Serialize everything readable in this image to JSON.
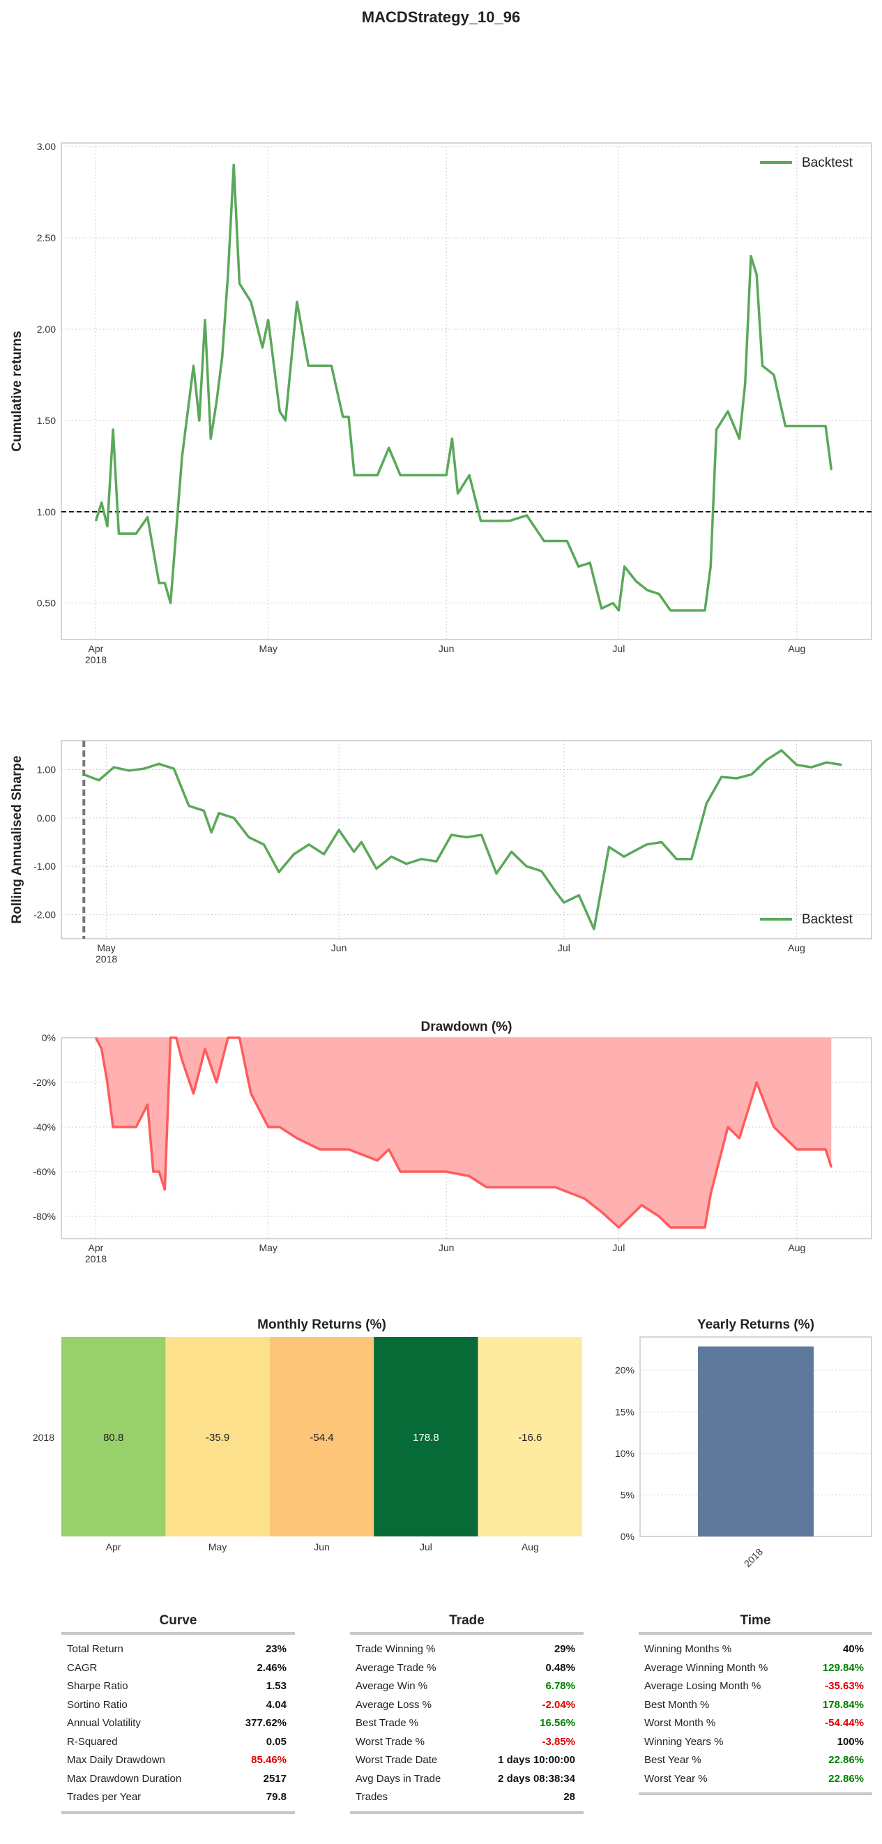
{
  "title": "MACDStrategy_10_96",
  "colors": {
    "series": "#5aa85a",
    "drawdown_line": "#ff5c5c",
    "drawdown_fill": "#ffb0b0",
    "yearly_bar": "#5e799c",
    "grid": "#cccccc"
  },
  "chart_data": [
    {
      "id": "cumulative",
      "type": "line",
      "title": "",
      "xlabel": "",
      "ylabel": "Cumulative returns",
      "x_ticks": [
        "Apr\n2018",
        "May",
        "Jun",
        "Jul",
        "Aug"
      ],
      "x_tick_dates": [
        "2018-04-01",
        "2018-05-01",
        "2018-06-01",
        "2018-07-01",
        "2018-08-01"
      ],
      "xlim": [
        "2018-03-26",
        "2018-08-14"
      ],
      "y_ticks": [
        "0.50",
        "1.00",
        "1.50",
        "2.00",
        "2.50",
        "3.00"
      ],
      "ylim": [
        0.3,
        3.02
      ],
      "reference_line": 1.0,
      "legend": "top-right",
      "grid": true,
      "series": [
        {
          "name": "Backtest",
          "x": [
            "2018-04-01",
            "2018-04-02",
            "2018-04-03",
            "2018-04-04",
            "2018-04-05",
            "2018-04-06",
            "2018-04-08",
            "2018-04-10",
            "2018-04-12",
            "2018-04-13",
            "2018-04-14",
            "2018-04-16",
            "2018-04-18",
            "2018-04-19",
            "2018-04-20",
            "2018-04-21",
            "2018-04-22",
            "2018-04-23",
            "2018-04-24",
            "2018-04-25",
            "2018-04-26",
            "2018-04-28",
            "2018-04-30",
            "2018-05-01",
            "2018-05-03",
            "2018-05-04",
            "2018-05-06",
            "2018-05-08",
            "2018-05-10",
            "2018-05-12",
            "2018-05-14",
            "2018-05-15",
            "2018-05-16",
            "2018-05-20",
            "2018-05-22",
            "2018-05-24",
            "2018-05-26",
            "2018-05-28",
            "2018-05-30",
            "2018-06-01",
            "2018-06-02",
            "2018-06-03",
            "2018-06-05",
            "2018-06-07",
            "2018-06-09",
            "2018-06-12",
            "2018-06-15",
            "2018-06-18",
            "2018-06-20",
            "2018-06-22",
            "2018-06-24",
            "2018-06-26",
            "2018-06-28",
            "2018-06-30",
            "2018-07-01",
            "2018-07-02",
            "2018-07-04",
            "2018-07-06",
            "2018-07-08",
            "2018-07-10",
            "2018-07-12",
            "2018-07-14",
            "2018-07-16",
            "2018-07-17",
            "2018-07-18",
            "2018-07-20",
            "2018-07-22",
            "2018-07-23",
            "2018-07-24",
            "2018-07-25",
            "2018-07-26",
            "2018-07-28",
            "2018-07-30",
            "2018-08-01",
            "2018-08-04",
            "2018-08-06",
            "2018-08-07"
          ],
          "y": [
            0.95,
            1.05,
            0.92,
            1.45,
            0.88,
            0.88,
            0.88,
            0.97,
            0.61,
            0.61,
            0.5,
            1.3,
            1.8,
            1.5,
            2.05,
            1.4,
            1.6,
            1.85,
            2.3,
            2.9,
            2.25,
            2.15,
            1.9,
            2.05,
            1.55,
            1.5,
            2.15,
            1.8,
            1.8,
            1.8,
            1.52,
            1.52,
            1.2,
            1.2,
            1.35,
            1.2,
            1.2,
            1.2,
            1.2,
            1.2,
            1.4,
            1.1,
            1.2,
            0.95,
            0.95,
            0.95,
            0.98,
            0.84,
            0.84,
            0.84,
            0.7,
            0.72,
            0.47,
            0.5,
            0.46,
            0.7,
            0.62,
            0.57,
            0.55,
            0.46,
            0.46,
            0.46,
            0.46,
            0.7,
            1.45,
            1.55,
            1.4,
            1.7,
            2.4,
            2.3,
            1.8,
            1.75,
            1.47,
            1.47,
            1.47,
            1.47,
            1.23
          ]
        }
      ]
    },
    {
      "id": "rolling_sharpe",
      "type": "line",
      "title": "",
      "xlabel": "",
      "ylabel": "Rolling Annualised Sharpe",
      "x_ticks": [
        "May\n2018",
        "Jun",
        "Jul",
        "Aug"
      ],
      "x_tick_dates": [
        "2018-05-01",
        "2018-06-01",
        "2018-07-01",
        "2018-08-01"
      ],
      "xlim": [
        "2018-04-25",
        "2018-08-11"
      ],
      "y_ticks": [
        "-2.00",
        "-1.00",
        "0.00",
        "1.00"
      ],
      "ylim": [
        -2.5,
        1.6
      ],
      "marker_line_date": "2018-04-28",
      "legend": "bottom-right",
      "grid": true,
      "series": [
        {
          "name": "Backtest",
          "x": [
            "2018-04-28",
            "2018-04-30",
            "2018-05-02",
            "2018-05-04",
            "2018-05-06",
            "2018-05-08",
            "2018-05-10",
            "2018-05-12",
            "2018-05-14",
            "2018-05-15",
            "2018-05-16",
            "2018-05-18",
            "2018-05-20",
            "2018-05-22",
            "2018-05-24",
            "2018-05-26",
            "2018-05-28",
            "2018-05-30",
            "2018-06-01",
            "2018-06-03",
            "2018-06-04",
            "2018-06-06",
            "2018-06-08",
            "2018-06-10",
            "2018-06-12",
            "2018-06-14",
            "2018-06-16",
            "2018-06-18",
            "2018-06-20",
            "2018-06-22",
            "2018-06-24",
            "2018-06-26",
            "2018-06-28",
            "2018-06-30",
            "2018-07-01",
            "2018-07-03",
            "2018-07-05",
            "2018-07-07",
            "2018-07-09",
            "2018-07-12",
            "2018-07-14",
            "2018-07-16",
            "2018-07-17",
            "2018-07-18",
            "2018-07-20",
            "2018-07-22",
            "2018-07-24",
            "2018-07-26",
            "2018-07-28",
            "2018-07-30",
            "2018-08-01",
            "2018-08-03",
            "2018-08-05",
            "2018-08-07"
          ],
          "y": [
            0.9,
            0.78,
            1.05,
            0.98,
            1.02,
            1.12,
            1.02,
            0.25,
            0.15,
            -0.3,
            0.1,
            0.0,
            -0.4,
            -0.55,
            -1.12,
            -0.75,
            -0.55,
            -0.75,
            -0.25,
            -0.7,
            -0.5,
            -1.05,
            -0.8,
            -0.95,
            -0.85,
            -0.9,
            -0.35,
            -0.4,
            -0.35,
            -1.15,
            -0.7,
            -1.0,
            -1.1,
            -1.55,
            -1.75,
            -1.6,
            -2.3,
            -0.6,
            -0.8,
            -0.55,
            -0.5,
            -0.85,
            -0.85,
            -0.85,
            0.3,
            0.85,
            0.82,
            0.9,
            1.2,
            1.4,
            1.1,
            1.05,
            1.15,
            1.1
          ]
        }
      ]
    },
    {
      "id": "drawdown",
      "type": "area",
      "title": "Drawdown (%)",
      "xlabel": "",
      "ylabel": "",
      "x_ticks": [
        "Apr\n2018",
        "May",
        "Jun",
        "Jul",
        "Aug"
      ],
      "x_tick_dates": [
        "2018-04-01",
        "2018-05-01",
        "2018-06-01",
        "2018-07-01",
        "2018-08-01"
      ],
      "xlim": [
        "2018-03-26",
        "2018-08-14"
      ],
      "y_ticks": [
        "0%",
        "-20%",
        "-40%",
        "-60%",
        "-80%"
      ],
      "ylim": [
        -90,
        0
      ],
      "grid": true,
      "series": [
        {
          "name": "",
          "x": [
            "2018-04-01",
            "2018-04-02",
            "2018-04-03",
            "2018-04-04",
            "2018-04-05",
            "2018-04-08",
            "2018-04-10",
            "2018-04-11",
            "2018-04-12",
            "2018-04-13",
            "2018-04-14",
            "2018-04-15",
            "2018-04-16",
            "2018-04-18",
            "2018-04-20",
            "2018-04-22",
            "2018-04-24",
            "2018-04-26",
            "2018-04-28",
            "2018-04-30",
            "2018-05-01",
            "2018-05-03",
            "2018-05-06",
            "2018-05-10",
            "2018-05-15",
            "2018-05-20",
            "2018-05-22",
            "2018-05-24",
            "2018-06-01",
            "2018-06-05",
            "2018-06-08",
            "2018-06-12",
            "2018-06-16",
            "2018-06-20",
            "2018-06-25",
            "2018-06-28",
            "2018-07-01",
            "2018-07-05",
            "2018-07-08",
            "2018-07-10",
            "2018-07-12",
            "2018-07-14",
            "2018-07-16",
            "2018-07-17",
            "2018-07-20",
            "2018-07-22",
            "2018-07-25",
            "2018-07-28",
            "2018-08-01",
            "2018-08-06",
            "2018-08-07"
          ],
          "y": [
            0,
            -5,
            -20,
            -40,
            -40,
            -40,
            -30,
            -60,
            -60,
            -68,
            0,
            0,
            -10,
            -25,
            -5,
            -20,
            0,
            0,
            -25,
            -35,
            -40,
            -40,
            -45,
            -50,
            -50,
            -55,
            -50,
            -60,
            -60,
            -62,
            -67,
            -67,
            -67,
            -67,
            -72,
            -78,
            -85,
            -75,
            -80,
            -85,
            -85,
            -85,
            -85,
            -70,
            -40,
            -45,
            -20,
            -40,
            -50,
            -50,
            -58
          ]
        }
      ]
    },
    {
      "id": "monthly_returns",
      "type": "heatmap",
      "title": "Monthly Returns (%)",
      "xlabel": "",
      "ylabel": "",
      "rows": [
        "2018"
      ],
      "categories": [
        "Apr",
        "May",
        "Jun",
        "Jul",
        "Aug"
      ],
      "values": [
        80.8,
        -35.9,
        -54.4,
        178.8,
        -16.6
      ],
      "value_labels": [
        "80.8",
        "-35.9",
        "-54.4",
        "178.8",
        "-16.6"
      ],
      "cell_colors": [
        "#98d169",
        "#fde08b",
        "#fdc578",
        "#066b36",
        "#feeba0"
      ]
    },
    {
      "id": "yearly_returns",
      "type": "bar",
      "title": "Yearly Returns (%)",
      "xlabel": "",
      "ylabel": "",
      "categories": [
        "2018"
      ],
      "values": [
        22.86
      ],
      "y_ticks": [
        "0%",
        "5%",
        "10%",
        "15%",
        "20%"
      ],
      "ylim": [
        0,
        24
      ],
      "grid": true
    }
  ],
  "stats": {
    "curve": {
      "title": "Curve",
      "rows": [
        {
          "label": "Total Return",
          "value": "23%",
          "tone": "neutral"
        },
        {
          "label": "CAGR",
          "value": "2.46%",
          "tone": "neutral"
        },
        {
          "label": "Sharpe Ratio",
          "value": "1.53",
          "tone": "neutral"
        },
        {
          "label": "Sortino Ratio",
          "value": "4.04",
          "tone": "neutral"
        },
        {
          "label": "Annual Volatility",
          "value": "377.62%",
          "tone": "neutral"
        },
        {
          "label": "R-Squared",
          "value": "0.05",
          "tone": "neutral"
        },
        {
          "label": "Max Daily Drawdown",
          "value": "85.46%",
          "tone": "neg"
        },
        {
          "label": "Max Drawdown Duration",
          "value": "2517",
          "tone": "neutral"
        },
        {
          "label": "Trades per Year",
          "value": "79.8",
          "tone": "neutral"
        }
      ]
    },
    "trade": {
      "title": "Trade",
      "rows": [
        {
          "label": "Trade Winning %",
          "value": "29%",
          "tone": "neutral"
        },
        {
          "label": "Average Trade %",
          "value": "0.48%",
          "tone": "neutral"
        },
        {
          "label": "Average Win %",
          "value": "6.78%",
          "tone": "pos"
        },
        {
          "label": "Average Loss %",
          "value": "-2.04%",
          "tone": "neg"
        },
        {
          "label": "Best Trade %",
          "value": "16.56%",
          "tone": "pos"
        },
        {
          "label": "Worst Trade %",
          "value": "-3.85%",
          "tone": "neg"
        },
        {
          "label": "Worst Trade Date",
          "value": "1 days 10:00:00",
          "tone": "neutral"
        },
        {
          "label": "Avg Days in Trade",
          "value": "2 days 08:38:34",
          "tone": "neutral"
        },
        {
          "label": "Trades",
          "value": "28",
          "tone": "neutral"
        }
      ]
    },
    "time": {
      "title": "Time",
      "rows": [
        {
          "label": "Winning Months %",
          "value": "40%",
          "tone": "neutral"
        },
        {
          "label": "Average Winning Month %",
          "value": "129.84%",
          "tone": "pos"
        },
        {
          "label": "Average Losing Month %",
          "value": "-35.63%",
          "tone": "neg"
        },
        {
          "label": "Best Month %",
          "value": "178.84%",
          "tone": "pos"
        },
        {
          "label": "Worst Month %",
          "value": "-54.44%",
          "tone": "neg"
        },
        {
          "label": "Winning Years %",
          "value": "100%",
          "tone": "neutral"
        },
        {
          "label": "Best Year %",
          "value": "22.86%",
          "tone": "pos"
        },
        {
          "label": "Worst Year %",
          "value": "22.86%",
          "tone": "pos"
        }
      ]
    }
  }
}
